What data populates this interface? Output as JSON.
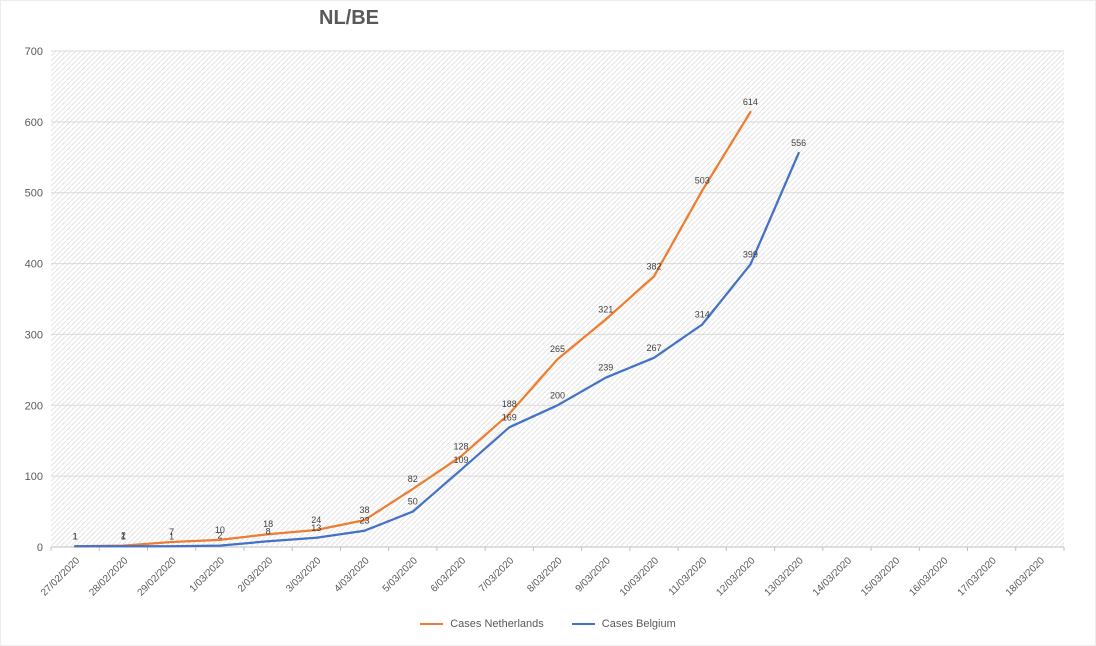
{
  "chart_data": {
    "type": "line",
    "title": "NL/BE",
    "categories": [
      "27/02/2020",
      "28/02/2020",
      "29/02/2020",
      "1/03/2020",
      "2/03/2020",
      "3/03/2020",
      "4/03/2020",
      "5/03/2020",
      "6/03/2020",
      "7/03/2020",
      "8/03/2020",
      "9/03/2020",
      "10/03/2020",
      "11/03/2020",
      "12/03/2020",
      "13/03/2020",
      "14/03/2020",
      "15/03/2020",
      "16/03/2020",
      "17/03/2020",
      "18/03/2020"
    ],
    "series": [
      {
        "name": "Cases Netherlands",
        "color": "#ED7D31",
        "values": [
          1,
          2,
          7,
          10,
          18,
          24,
          38,
          82,
          128,
          188,
          265,
          321,
          382,
          503,
          614
        ]
      },
      {
        "name": "Cases Belgium",
        "color": "#4472C4",
        "values": [
          1,
          1,
          1,
          2,
          8,
          13,
          23,
          50,
          109,
          169,
          200,
          239,
          267,
          314,
          399,
          556
        ]
      }
    ],
    "ylim": [
      0,
      700
    ],
    "y_ticks": [
      0,
      100,
      200,
      300,
      400,
      500,
      600,
      700
    ],
    "xlabel": "",
    "ylabel": "",
    "grid": "horizontal",
    "legend_position": "bottom",
    "data_labels": true
  }
}
